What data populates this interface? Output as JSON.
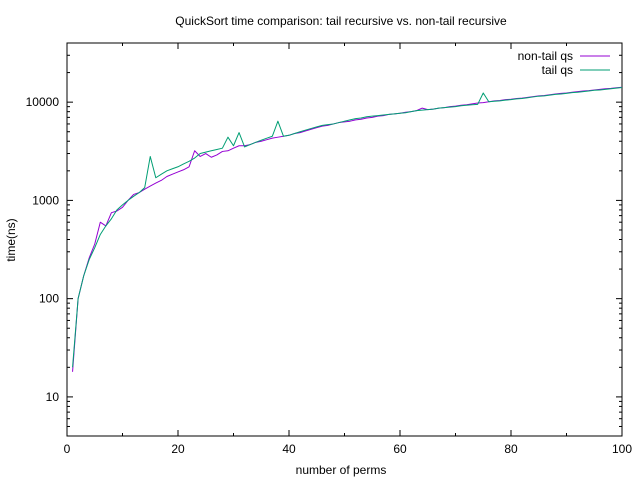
{
  "chart_data": {
    "type": "line",
    "title": "QuickSort time comparison: tail recursive vs. non-tail recursive",
    "xlabel": "number of perms",
    "ylabel": "time(ns)",
    "xlim": [
      0,
      100
    ],
    "ylim": [
      4,
      40000
    ],
    "yscale": "log",
    "grid": false,
    "legend_position": "top-right",
    "x_ticks": [
      0,
      20,
      40,
      60,
      80,
      100
    ],
    "y_ticks": [
      10,
      100,
      1000,
      10000
    ],
    "x": [
      1,
      2,
      3,
      4,
      5,
      6,
      7,
      8,
      9,
      10,
      11,
      12,
      13,
      14,
      15,
      16,
      17,
      18,
      19,
      20,
      21,
      22,
      23,
      24,
      25,
      26,
      27,
      28,
      29,
      30,
      31,
      32,
      33,
      34,
      35,
      36,
      37,
      38,
      39,
      40,
      41,
      42,
      43,
      44,
      45,
      46,
      47,
      48,
      49,
      50,
      51,
      52,
      53,
      54,
      55,
      56,
      57,
      58,
      59,
      60,
      61,
      62,
      63,
      64,
      65,
      66,
      67,
      68,
      69,
      70,
      71,
      72,
      73,
      74,
      75,
      76,
      77,
      78,
      79,
      80,
      81,
      82,
      83,
      84,
      85,
      86,
      87,
      88,
      89,
      90,
      91,
      92,
      93,
      94,
      95,
      96,
      97,
      98,
      99,
      100
    ],
    "series": [
      {
        "name": "non-tail qs",
        "color": "#9400d3",
        "values": [
          18,
          100,
          170,
          260,
          360,
          600,
          550,
          750,
          780,
          850,
          1000,
          1150,
          1200,
          1300,
          1400,
          1500,
          1600,
          1750,
          1850,
          1950,
          2050,
          2200,
          3200,
          2800,
          3000,
          2750,
          2900,
          3150,
          3200,
          3400,
          3600,
          3600,
          3700,
          3900,
          4000,
          4150,
          4300,
          4400,
          4500,
          4600,
          4800,
          4900,
          5100,
          5300,
          5500,
          5700,
          5800,
          6000,
          6200,
          6300,
          6400,
          6600,
          6700,
          6900,
          7000,
          7200,
          7300,
          7500,
          7600,
          7700,
          7900,
          8000,
          8200,
          8700,
          8400,
          8500,
          8700,
          8800,
          9000,
          9100,
          9300,
          9400,
          9600,
          9800,
          9900,
          10100,
          10300,
          10400,
          10600,
          10700,
          10900,
          11000,
          11200,
          11400,
          11600,
          11700,
          11900,
          12100,
          12300,
          12400,
          12600,
          12800,
          13000,
          13100,
          13300,
          13500,
          13700,
          13800,
          14000,
          14200
        ]
      },
      {
        "name": "tail qs",
        "color": "#009e73",
        "values": [
          20,
          100,
          170,
          250,
          330,
          450,
          550,
          650,
          800,
          900,
          1000,
          1100,
          1200,
          1350,
          2800,
          1700,
          1850,
          2000,
          2100,
          2200,
          2350,
          2500,
          2700,
          3000,
          3100,
          3200,
          3300,
          3400,
          4400,
          3600,
          4900,
          3500,
          3700,
          3900,
          4100,
          4300,
          4500,
          6400,
          4500,
          4600,
          4800,
          5000,
          5200,
          5400,
          5600,
          5800,
          5900,
          6000,
          6200,
          6400,
          6600,
          6800,
          6900,
          7100,
          7200,
          7300,
          7400,
          7500,
          7600,
          7700,
          7800,
          8000,
          8200,
          8300,
          8400,
          8500,
          8700,
          8800,
          8900,
          9000,
          9200,
          9300,
          9400,
          9500,
          12400,
          10100,
          10200,
          10300,
          10500,
          10600,
          10800,
          10900,
          11100,
          11300,
          11500,
          11600,
          11800,
          12000,
          12100,
          12300,
          12500,
          12600,
          12800,
          13000,
          13200,
          13300,
          13500,
          13700,
          13900,
          14100
        ]
      }
    ]
  }
}
